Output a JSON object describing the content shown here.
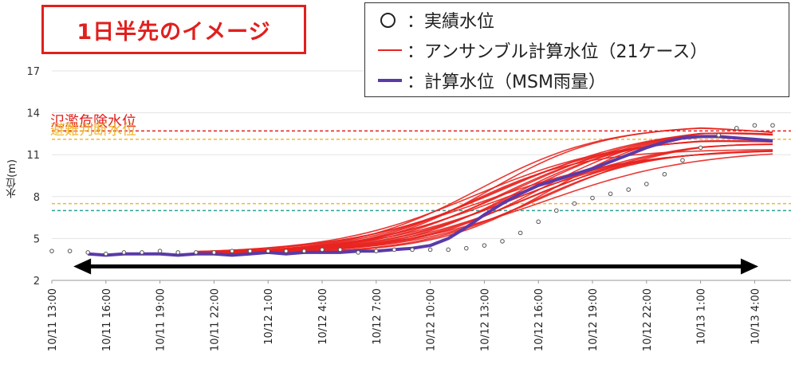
{
  "title": "1日半先のイメージ",
  "legend": {
    "observed": "：実績水位",
    "ensemble": "：アンサンブル計算水位（21ケース）",
    "msm": "：計算水位（MSM雨量）"
  },
  "colors": {
    "observed": "#555555",
    "ensemble": "#e8231f",
    "msm": "#5a3aa8",
    "danger": "#e0201e",
    "evac": "#f2b632",
    "dashed_green": "#2aa198",
    "arrow": "#000000"
  },
  "chart_data": {
    "type": "line",
    "ylabel": "水位(m)",
    "ylim": [
      2,
      17
    ],
    "yticks": [
      "2",
      "5",
      "8",
      "11",
      "14",
      "17"
    ],
    "xticks": [
      "10/11 13:00",
      "10/11 16:00",
      "10/11 19:00",
      "10/11 22:00",
      "10/12 1:00",
      "10/12 4:00",
      "10/12 7:00",
      "10/12 10:00",
      "10/12 13:00",
      "10/12 16:00",
      "10/12 19:00",
      "10/12 22:00",
      "10/13 1:00",
      "10/13 4:00"
    ],
    "xrange_hours": [
      0,
      40
    ],
    "thresholds": [
      {
        "label": "氾濫危険水位",
        "value": 12.7,
        "color": "#e0201e"
      },
      {
        "label": "避難判断水位",
        "value": 12.1,
        "color": "#f2b632"
      },
      {
        "label": "",
        "value": 7.5,
        "color": "#f2b632"
      },
      {
        "label": "",
        "value": 7.0,
        "color": "#2aa198"
      }
    ],
    "observed": {
      "name": "実績水位",
      "x": [
        0,
        1,
        2,
        3,
        4,
        5,
        6,
        7,
        8,
        9,
        10,
        11,
        12,
        13,
        14,
        15,
        16,
        17,
        18,
        19,
        20,
        21,
        22,
        23,
        24,
        25,
        26,
        27,
        28,
        29,
        30,
        31,
        32,
        33,
        34,
        35,
        36,
        37,
        38,
        39,
        40
      ],
      "y": [
        4.1,
        4.1,
        4.0,
        3.9,
        4.0,
        4.0,
        4.1,
        4.0,
        4.0,
        4.0,
        4.1,
        4.1,
        4.1,
        4.1,
        4.1,
        4.2,
        4.2,
        4.0,
        4.1,
        4.2,
        4.2,
        4.2,
        4.2,
        4.3,
        4.5,
        4.8,
        5.4,
        6.2,
        7.0,
        7.5,
        7.9,
        8.2,
        8.5,
        8.9,
        9.6,
        10.6,
        11.5,
        12.4,
        12.9,
        13.1,
        13.1
      ]
    },
    "msm": {
      "name": "計算水位（MSM雨量）",
      "x": [
        2,
        3,
        4,
        5,
        6,
        7,
        8,
        9,
        10,
        11,
        12,
        13,
        14,
        15,
        16,
        17,
        18,
        19,
        20,
        21,
        22,
        23,
        24,
        25,
        26,
        27,
        28,
        29,
        30,
        31,
        32,
        33,
        34,
        35,
        36,
        37,
        38,
        39,
        40
      ],
      "y": [
        3.9,
        3.8,
        3.9,
        3.9,
        3.9,
        3.8,
        3.9,
        3.9,
        3.8,
        3.9,
        4.0,
        3.9,
        4.0,
        4.0,
        4.0,
        4.1,
        4.1,
        4.2,
        4.3,
        4.5,
        5.0,
        5.8,
        6.7,
        7.5,
        8.2,
        8.8,
        9.2,
        9.6,
        10.0,
        10.5,
        11.0,
        11.5,
        11.9,
        12.2,
        12.3,
        12.3,
        12.2,
        12.1,
        12.0
      ]
    },
    "ensemble": {
      "name": "アンサンブル計算水位（21ケース）",
      "count": 21,
      "start_hour": 8,
      "base": 3.9,
      "peak_min": 11.4,
      "peak_max": 13.9
    },
    "arrow": {
      "from": 1.2,
      "to": 40,
      "y": 3.0
    }
  }
}
